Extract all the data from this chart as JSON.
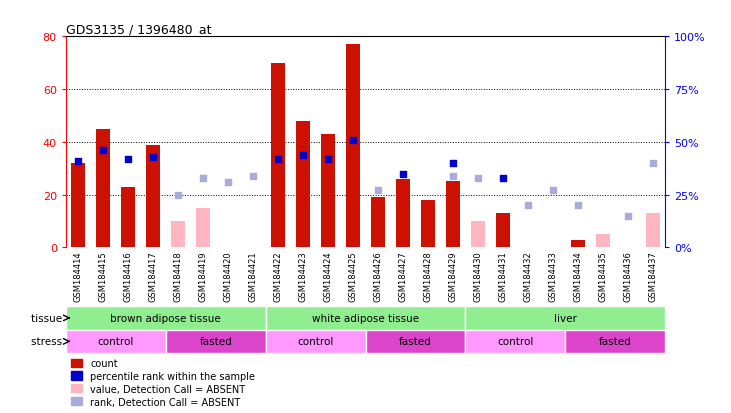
{
  "title": "GDS3135 / 1396480_at",
  "samples": [
    "GSM184414",
    "GSM184415",
    "GSM184416",
    "GSM184417",
    "GSM184418",
    "GSM184419",
    "GSM184420",
    "GSM184421",
    "GSM184422",
    "GSM184423",
    "GSM184424",
    "GSM184425",
    "GSM184426",
    "GSM184427",
    "GSM184428",
    "GSM184429",
    "GSM184430",
    "GSM184431",
    "GSM184432",
    "GSM184433",
    "GSM184434",
    "GSM184435",
    "GSM184436",
    "GSM184437"
  ],
  "count_present": [
    32,
    45,
    23,
    39,
    null,
    null,
    null,
    null,
    70,
    48,
    43,
    77,
    19,
    26,
    18,
    25,
    null,
    13,
    null,
    null,
    3,
    null,
    null,
    null
  ],
  "count_absent": [
    null,
    null,
    null,
    null,
    10,
    15,
    null,
    null,
    null,
    null,
    null,
    null,
    null,
    null,
    null,
    null,
    10,
    null,
    null,
    null,
    null,
    5,
    null,
    13
  ],
  "rank_present": [
    41,
    46,
    42,
    43,
    null,
    null,
    null,
    null,
    42,
    44,
    42,
    51,
    null,
    35,
    null,
    40,
    null,
    33,
    null,
    null,
    null,
    null,
    null,
    null
  ],
  "rank_absent": [
    null,
    null,
    null,
    null,
    25,
    33,
    31,
    34,
    null,
    null,
    null,
    null,
    27,
    null,
    null,
    34,
    33,
    null,
    20,
    27,
    20,
    null,
    15,
    40
  ],
  "tissue_groups": [
    {
      "label": "brown adipose tissue",
      "start": 0,
      "end": 8
    },
    {
      "label": "white adipose tissue",
      "start": 8,
      "end": 16
    },
    {
      "label": "liver",
      "start": 16,
      "end": 24
    }
  ],
  "stress_groups": [
    {
      "label": "control",
      "start": 0,
      "end": 4,
      "type": "control"
    },
    {
      "label": "fasted",
      "start": 4,
      "end": 8,
      "type": "fasted"
    },
    {
      "label": "control",
      "start": 8,
      "end": 12,
      "type": "control"
    },
    {
      "label": "fasted",
      "start": 12,
      "end": 16,
      "type": "fasted"
    },
    {
      "label": "control",
      "start": 16,
      "end": 20,
      "type": "control"
    },
    {
      "label": "fasted",
      "start": 20,
      "end": 24,
      "type": "fasted"
    }
  ],
  "ylim_left": [
    0,
    80
  ],
  "ylim_right": [
    0,
    100
  ],
  "yticks_left": [
    0,
    20,
    40,
    60,
    80
  ],
  "yticks_right": [
    0,
    25,
    50,
    75,
    100
  ],
  "present_bar_color": "#CC1100",
  "absent_bar_color": "#FFB6C1",
  "present_rank_color": "#0000CC",
  "absent_rank_color": "#AAAADD",
  "tissue_color": "#90EE90",
  "control_color": "#FF99FF",
  "fasted_color": "#DD44CC",
  "xticklabel_bg": "#C8C8C8",
  "legend_items": [
    {
      "label": "count",
      "color": "#CC1100"
    },
    {
      "label": "percentile rank within the sample",
      "color": "#0000CC"
    },
    {
      "label": "value, Detection Call = ABSENT",
      "color": "#FFB6C1"
    },
    {
      "label": "rank, Detection Call = ABSENT",
      "color": "#AAAADD"
    }
  ]
}
